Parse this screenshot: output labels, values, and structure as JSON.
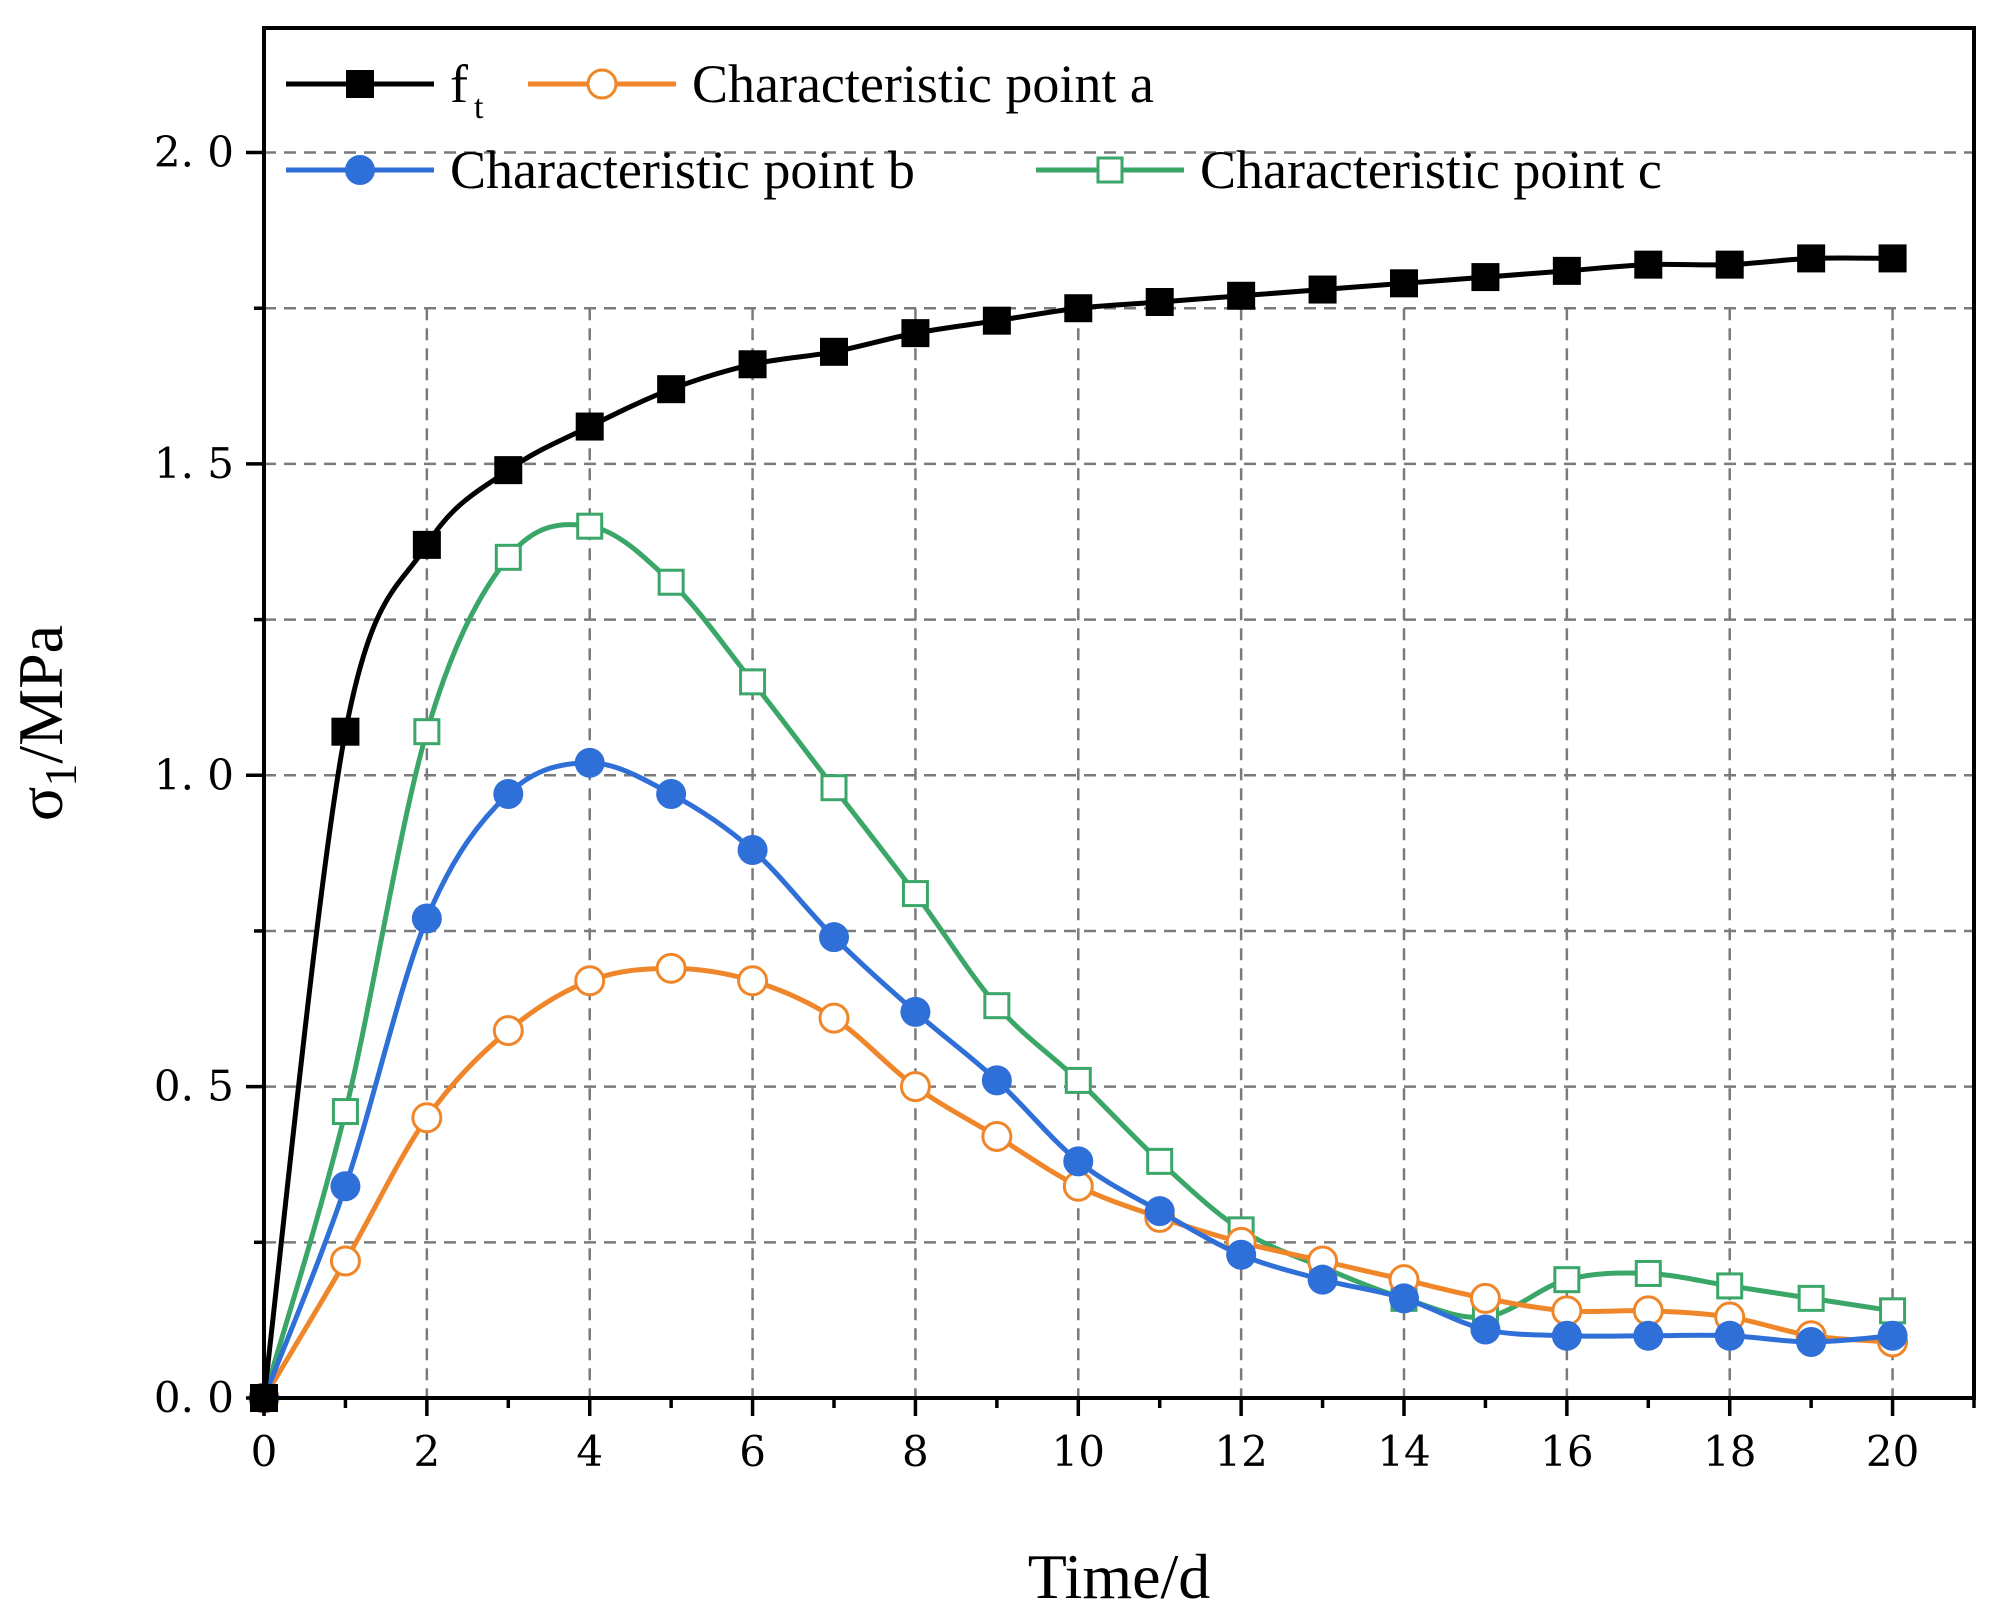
{
  "chart_data": {
    "type": "line",
    "title": "",
    "xlabel": "Time/d",
    "ylabel_main": "σ",
    "ylabel_sub": "1",
    "ylabel_rest": "/MPa",
    "xlim": [
      0,
      21
    ],
    "ylim": [
      0,
      2.2
    ],
    "x_ticks": [
      0,
      2,
      4,
      6,
      8,
      10,
      12,
      14,
      16,
      18,
      20
    ],
    "x_tick_labels": [
      "0",
      "2",
      "4",
      "6",
      "8",
      "10",
      "12",
      "14",
      "16",
      "18",
      "20"
    ],
    "y_ticks": [
      0,
      0.5,
      1.0,
      1.5,
      2.0
    ],
    "y_tick_labels": [
      "0. 0",
      "0. 5",
      "1. 0",
      "1. 5",
      "2. 0"
    ],
    "grid_x": [
      2,
      4,
      6,
      8,
      10,
      12,
      14,
      16,
      18,
      20
    ],
    "grid_y": [
      0.25,
      0.5,
      0.75,
      1.0,
      1.25,
      1.5,
      1.75,
      2.0
    ],
    "grid": true,
    "legend_position": "top-left",
    "series": [
      {
        "name": "f",
        "name_sub": "t",
        "color": "#000000",
        "marker": "square-filled",
        "x": [
          0,
          1,
          2,
          3,
          4,
          5,
          6,
          7,
          8,
          9,
          10,
          11,
          12,
          13,
          14,
          15,
          16,
          17,
          18,
          19,
          20
        ],
        "values": [
          0,
          1.07,
          1.37,
          1.49,
          1.56,
          1.62,
          1.66,
          1.68,
          1.71,
          1.73,
          1.75,
          1.76,
          1.77,
          1.78,
          1.79,
          1.8,
          1.81,
          1.82,
          1.82,
          1.83,
          1.83
        ]
      },
      {
        "name": "Characteristic point a",
        "color": "#F0862A",
        "marker": "circle-open",
        "x": [
          0,
          1,
          2,
          3,
          4,
          5,
          6,
          7,
          8,
          9,
          10,
          11,
          12,
          13,
          14,
          15,
          16,
          17,
          18,
          19,
          20
        ],
        "values": [
          0,
          0.22,
          0.45,
          0.59,
          0.67,
          0.69,
          0.67,
          0.61,
          0.5,
          0.42,
          0.34,
          0.29,
          0.25,
          0.22,
          0.19,
          0.16,
          0.14,
          0.14,
          0.13,
          0.1,
          0.09
        ]
      },
      {
        "name": "Characteristic point b",
        "color": "#2F6FD8",
        "marker": "circle-filled",
        "x": [
          0,
          1,
          2,
          3,
          4,
          5,
          6,
          7,
          8,
          9,
          10,
          11,
          12,
          13,
          14,
          15,
          16,
          17,
          18,
          19,
          20
        ],
        "values": [
          0,
          0.34,
          0.77,
          0.97,
          1.02,
          0.97,
          0.88,
          0.74,
          0.62,
          0.51,
          0.38,
          0.3,
          0.23,
          0.19,
          0.16,
          0.11,
          0.1,
          0.1,
          0.1,
          0.09,
          0.1
        ]
      },
      {
        "name": "Characteristic point c",
        "color": "#3AA667",
        "marker": "square-open",
        "x": [
          0,
          1,
          2,
          3,
          4,
          5,
          6,
          7,
          8,
          9,
          10,
          11,
          12,
          13,
          14,
          15,
          16,
          17,
          18,
          19,
          20
        ],
        "values": [
          0,
          0.46,
          1.07,
          1.35,
          1.4,
          1.31,
          1.15,
          0.98,
          0.81,
          0.63,
          0.51,
          0.38,
          0.27,
          0.21,
          0.16,
          0.13,
          0.19,
          0.2,
          0.18,
          0.16,
          0.14
        ]
      }
    ]
  }
}
